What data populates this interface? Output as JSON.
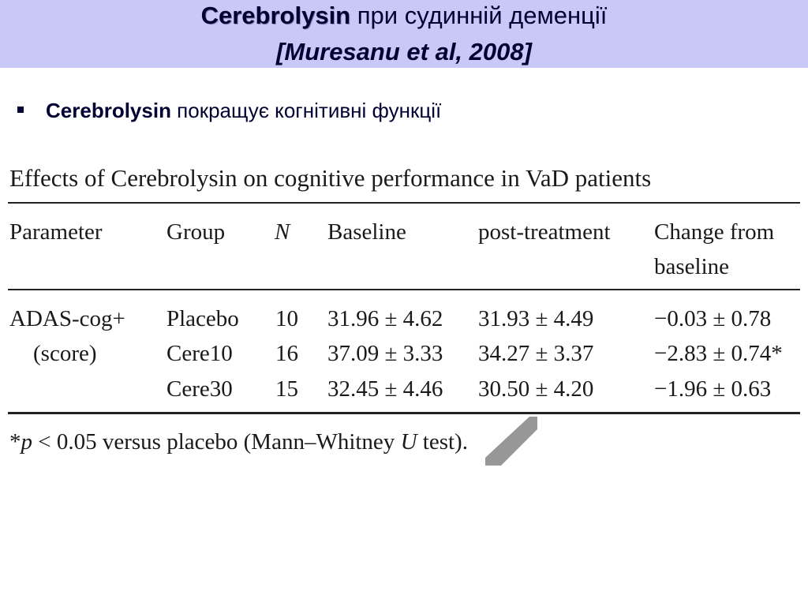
{
  "header": {
    "title_bold": "Cerebrolysin",
    "title_rest": " при судинній деменції",
    "reference": "[Muresanu et al, 2008]"
  },
  "bullet": {
    "bold": "Cerebrolysin",
    "rest": " покращує когнітивні функції"
  },
  "table": {
    "caption": "Effects of Cerebrolysin on cognitive performance in VaD patients",
    "headers": {
      "parameter": "Parameter",
      "group": "Group",
      "n": "N",
      "baseline": "Baseline",
      "post": "post-treatment",
      "change_line1": "Change from",
      "change_line2": "baseline"
    },
    "parameter_line1": "ADAS-cog+",
    "parameter_line2": "(score)",
    "rows": [
      {
        "group": "Placebo",
        "n": "10",
        "baseline": "31.96 ± 4.62",
        "post": "31.93 ± 4.49",
        "change": "−0.03 ± 0.78"
      },
      {
        "group": "Cere10",
        "n": "16",
        "baseline": "37.09 ± 3.33",
        "post": "34.27 ± 3.37",
        "change": "−2.83 ± 0.74*"
      },
      {
        "group": "Cere30",
        "n": "15",
        "baseline": "32.45 ± 4.46",
        "post": "30.50 ± 4.20",
        "change": "−1.96 ± 0.63"
      }
    ],
    "footnote": {
      "star": "*",
      "p": "p",
      "mid": " < 0.05 versus placebo (Mann–Whitney ",
      "u": "U",
      "end": " test)."
    }
  },
  "colors": {
    "header_bg": "#c9c9f7",
    "text_dark": "#000033",
    "watermark": "#8c8c8c"
  }
}
